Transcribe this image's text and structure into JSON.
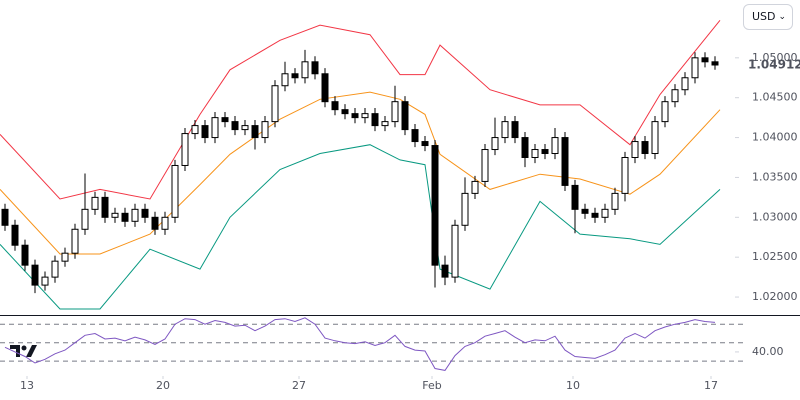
{
  "currency": "USD",
  "chart_data": [
    {
      "type": "candlestick",
      "x": [
        0,
        1,
        2,
        3,
        4,
        5,
        6,
        7,
        8,
        9,
        10,
        11,
        12,
        13,
        14,
        15,
        16,
        17,
        18,
        19,
        20,
        21,
        22,
        23,
        24,
        25,
        26,
        27,
        28,
        29,
        30,
        31,
        32,
        33,
        34,
        35,
        36,
        37,
        38,
        39,
        40,
        41,
        42,
        43,
        44,
        45,
        46,
        47,
        48,
        49,
        50,
        51,
        52,
        53,
        54,
        55,
        56,
        57,
        58,
        59,
        60,
        61,
        62,
        63,
        64,
        65,
        66,
        67,
        68,
        69,
        70,
        71
      ],
      "open": [
        1.031,
        1.029,
        1.0265,
        1.024,
        1.0215,
        1.0225,
        1.0245,
        1.0255,
        1.0285,
        1.031,
        1.0325,
        1.03,
        1.0305,
        1.0295,
        1.031,
        1.03,
        1.0285,
        1.03,
        1.0365,
        1.0405,
        1.0415,
        1.04,
        1.0425,
        1.042,
        1.041,
        1.0415,
        1.04,
        1.042,
        1.0465,
        1.048,
        1.0475,
        1.0495,
        1.048,
        1.0445,
        1.0435,
        1.043,
        1.0425,
        1.043,
        1.0415,
        1.042,
        1.0445,
        1.041,
        1.0395,
        1.039,
        1.024,
        1.0225,
        1.029,
        1.033,
        1.0345,
        1.0385,
        1.04,
        1.042,
        1.04,
        1.0375,
        1.0385,
        1.038,
        1.04,
        1.034,
        1.031,
        1.0305,
        1.03,
        1.031,
        1.033,
        1.0375,
        1.0395,
        1.038,
        1.042,
        1.0445,
        1.046,
        1.0475,
        1.05,
        1.0495
      ],
      "high": [
        1.0317,
        1.0297,
        1.0272,
        1.0247,
        1.0232,
        1.0252,
        1.0262,
        1.0292,
        1.0355,
        1.0332,
        1.0332,
        1.0312,
        1.0312,
        1.0317,
        1.0317,
        1.0307,
        1.0307,
        1.0372,
        1.0412,
        1.0422,
        1.0422,
        1.0432,
        1.0432,
        1.0427,
        1.0422,
        1.0422,
        1.0427,
        1.0472,
        1.0495,
        1.0487,
        1.051,
        1.0502,
        1.0487,
        1.0452,
        1.0442,
        1.0437,
        1.0437,
        1.0437,
        1.0427,
        1.0465,
        1.0452,
        1.0417,
        1.0402,
        1.0397,
        1.0252,
        1.0297,
        1.035,
        1.0352,
        1.0392,
        1.0425,
        1.0427,
        1.0427,
        1.0407,
        1.0392,
        1.0392,
        1.0412,
        1.0407,
        1.0347,
        1.0317,
        1.0312,
        1.0317,
        1.0337,
        1.0382,
        1.0402,
        1.0402,
        1.0427,
        1.0452,
        1.0467,
        1.0482,
        1.0507,
        1.0507,
        1.0502
      ],
      "low": [
        1.0283,
        1.0258,
        1.0233,
        1.0205,
        1.0208,
        1.0218,
        1.0238,
        1.0248,
        1.0278,
        1.0303,
        1.0293,
        1.0293,
        1.0288,
        1.0288,
        1.0293,
        1.0278,
        1.0278,
        1.0293,
        1.0358,
        1.0398,
        1.0393,
        1.0393,
        1.0413,
        1.0403,
        1.0403,
        1.0385,
        1.0393,
        1.0413,
        1.0458,
        1.0468,
        1.0468,
        1.0473,
        1.0438,
        1.0428,
        1.0423,
        1.0418,
        1.0418,
        1.0408,
        1.0408,
        1.0413,
        1.0403,
        1.0388,
        1.0383,
        1.0212,
        1.0215,
        1.0218,
        1.0283,
        1.0323,
        1.0338,
        1.0378,
        1.0393,
        1.0393,
        1.0363,
        1.0368,
        1.0373,
        1.0373,
        1.0333,
        1.028,
        1.0298,
        1.0293,
        1.0293,
        1.0303,
        1.032,
        1.0368,
        1.0373,
        1.0373,
        1.0413,
        1.0438,
        1.0453,
        1.0468,
        1.0488,
        1.0485
      ],
      "close": [
        1.029,
        1.0265,
        1.024,
        1.0215,
        1.0225,
        1.0245,
        1.0255,
        1.0285,
        1.031,
        1.0325,
        1.03,
        1.0305,
        1.0295,
        1.031,
        1.03,
        1.0285,
        1.03,
        1.0365,
        1.0405,
        1.0415,
        1.04,
        1.0425,
        1.042,
        1.041,
        1.0415,
        1.04,
        1.042,
        1.0465,
        1.048,
        1.0475,
        1.0495,
        1.048,
        1.0445,
        1.0435,
        1.043,
        1.0425,
        1.043,
        1.0415,
        1.042,
        1.0445,
        1.041,
        1.0395,
        1.039,
        1.024,
        1.0225,
        1.029,
        1.033,
        1.0345,
        1.0385,
        1.04,
        1.042,
        1.04,
        1.0375,
        1.0385,
        1.038,
        1.04,
        1.034,
        1.031,
        1.0305,
        1.03,
        1.031,
        1.033,
        1.0375,
        1.0395,
        1.038,
        1.042,
        1.0445,
        1.046,
        1.0475,
        1.05,
        1.0495,
        1.0491
      ],
      "up_color": "#ffffff",
      "down_color": "#000000",
      "bands": [
        {
          "color": "#f23645",
          "x": [
            -0.5,
            5.5,
            9.5,
            14.5,
            19.5,
            22.5,
            27.5,
            31.5,
            36.5,
            39.5,
            42,
            43.5,
            48.5,
            53.5,
            57.5,
            62.5,
            65.5,
            71.5
          ],
          "values": [
            1.0404,
            1.0323,
            1.0335,
            1.0323,
            1.0429,
            1.0485,
            1.0522,
            1.0541,
            1.0529,
            1.0479,
            1.0479,
            1.0516,
            1.046,
            1.0441,
            1.0441,
            1.0391,
            1.0454,
            1.0547
          ]
        },
        {
          "color": "#f7931a",
          "x": [
            -0.5,
            5.5,
            9.5,
            14.5,
            19.5,
            22.5,
            27.5,
            31.5,
            36.5,
            39.5,
            42,
            43.5,
            48.5,
            53.5,
            57.5,
            62.5,
            65.5,
            71.5
          ],
          "values": [
            1.0335,
            1.0254,
            1.0254,
            1.0279,
            1.0341,
            1.0379,
            1.0423,
            1.0448,
            1.0457,
            1.0448,
            1.0429,
            1.0379,
            1.0335,
            1.0354,
            1.0348,
            1.0329,
            1.0354,
            1.0435
          ]
        },
        {
          "color": "#089981",
          "x": [
            -0.5,
            5.5,
            9.5,
            14.5,
            19.5,
            22.5,
            27.5,
            31.5,
            36.5,
            39.5,
            42,
            43.5,
            48.5,
            53.5,
            57.5,
            62.5,
            65.5,
            71.5
          ],
          "values": [
            1.0266,
            1.0185,
            1.0185,
            1.026,
            1.0235,
            1.03,
            1.036,
            1.038,
            1.0391,
            1.0372,
            1.0366,
            1.0235,
            1.021,
            1.032,
            1.0279,
            1.0273,
            1.0266,
            1.0335
          ]
        }
      ],
      "last_price": 1.04912,
      "xlim": [
        -0.5,
        73
      ],
      "ylim": [
        1.01775,
        1.05725
      ],
      "yticks": [
        {
          "value": 1.02,
          "label": "1.02000"
        },
        {
          "value": 1.025,
          "label": "1.02500"
        },
        {
          "value": 1.03,
          "label": "1.03000"
        },
        {
          "value": 1.035,
          "label": "1.03500"
        },
        {
          "value": 1.04,
          "label": "1.04000"
        },
        {
          "value": 1.045,
          "label": "1.04500"
        },
        {
          "value": 1.05,
          "label": "1.05000"
        }
      ],
      "xticks": [
        {
          "value": 2.2,
          "label": "13"
        },
        {
          "value": 15.8,
          "label": "20"
        },
        {
          "value": 29.4,
          "label": "27"
        },
        {
          "value": 42.7,
          "label": "Feb"
        },
        {
          "value": 56.8,
          "label": "10"
        },
        {
          "value": 70.6,
          "label": "17"
        }
      ]
    },
    {
      "type": "line",
      "x": [
        0,
        1,
        2,
        3,
        4,
        5,
        6,
        7,
        8,
        9,
        10,
        11,
        12,
        13,
        14,
        15,
        16,
        17,
        18,
        19,
        20,
        21,
        22,
        23,
        24,
        25,
        26,
        27,
        28,
        29,
        30,
        31,
        32,
        33,
        34,
        35,
        36,
        37,
        38,
        39,
        40,
        41,
        42,
        43,
        44,
        45,
        46,
        47,
        48,
        49,
        50,
        51,
        52,
        53,
        54,
        55,
        56,
        57,
        58,
        59,
        60,
        61,
        62,
        63,
        64,
        65,
        66,
        67,
        68,
        69,
        70,
        71
      ],
      "values": [
        45,
        40,
        35,
        28,
        32,
        38,
        42,
        50,
        58,
        60,
        54,
        55,
        52,
        56,
        53,
        48,
        54,
        70,
        76,
        75,
        70,
        74,
        72,
        68,
        69,
        63,
        68,
        75,
        76,
        73,
        77,
        70,
        55,
        52,
        50,
        49,
        51,
        47,
        50,
        58,
        46,
        42,
        41,
        22,
        20,
        36,
        46,
        50,
        57,
        60,
        63,
        56,
        50,
        53,
        52,
        57,
        42,
        35,
        34,
        33,
        37,
        42,
        55,
        60,
        55,
        63,
        67,
        70,
        72,
        75,
        73,
        72
      ],
      "color": "#7e57c2",
      "levels": [
        70,
        50,
        30
      ],
      "xlim": [
        -0.5,
        73
      ],
      "ylim": [
        15,
        80
      ],
      "yticks": [
        {
          "value": 40,
          "label": "40.00"
        }
      ]
    }
  ]
}
